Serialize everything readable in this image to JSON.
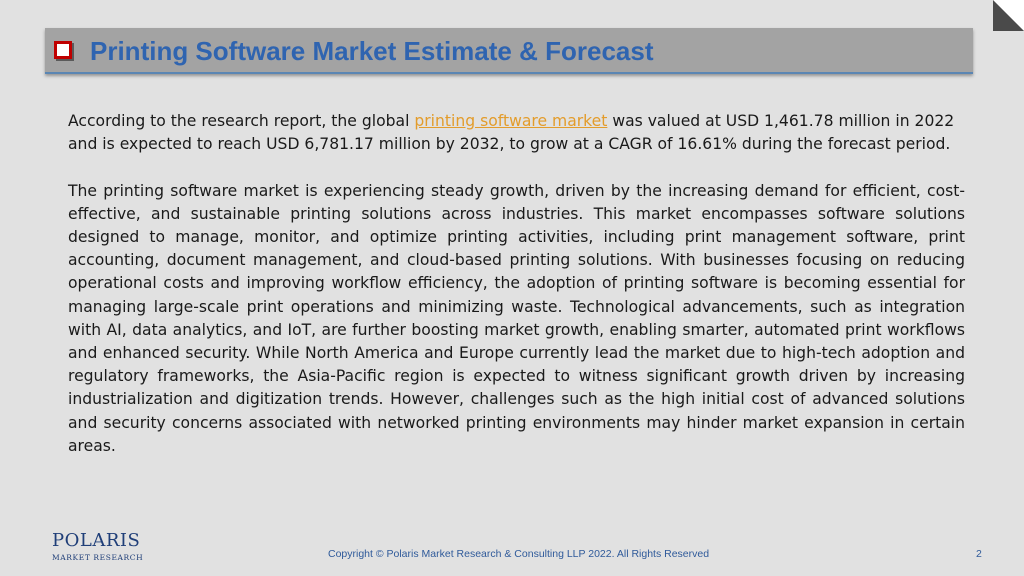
{
  "slide": {
    "title": "Printing Software Market Estimate & Forecast",
    "paragraph1": {
      "before_link": "According to the research report, the global ",
      "link_text": "printing software market",
      "after_link": " was valued at USD 1,461.78 million in 2022 and is expected to reach USD 6,781.17 million by 2032, to grow at a CAGR of 16.61% during the forecast period."
    },
    "paragraph2": "The printing software market is experiencing steady growth, driven by the increasing demand for efficient, cost-effective, and sustainable printing solutions across industries. This market encompasses software solutions designed to manage, monitor, and optimize printing activities, including print management software, print accounting, document management, and cloud-based printing solutions. With businesses focusing on reducing operational costs and improving workflow efficiency, the adoption of printing software is becoming essential for managing large-scale print operations and minimizing waste. Technological advancements, such as integration with AI, data analytics, and IoT, are further boosting market growth, enabling smarter, automated print workflows and enhanced security. While North America and Europe currently lead the market due to high-tech adoption and regulatory frameworks, the Asia-Pacific region is expected to witness significant growth driven by increasing industrialization and digitization trends. However, challenges such as the high initial cost of advanced solutions and security concerns associated with networked printing environments may hinder market expansion in certain areas."
  },
  "footer": {
    "logo_name": "POLARIS",
    "logo_subtitle": "MARKET RESEARCH",
    "copyright": "Copyright © Polaris Market Research & Consulting LLP 2022. All Rights Reserved",
    "page_number": "2"
  },
  "colors": {
    "background": "#e1e1e1",
    "title_bar": "#a3a3a3",
    "title_text": "#2f64b0",
    "bullet": "#c00000",
    "link": "#e39c2b",
    "logo": "#1f3e78"
  },
  "icons": {
    "corner": "page-corner-fold-icon",
    "bullet": "checkbox-bullet-icon",
    "logo_star": "star-icon"
  }
}
